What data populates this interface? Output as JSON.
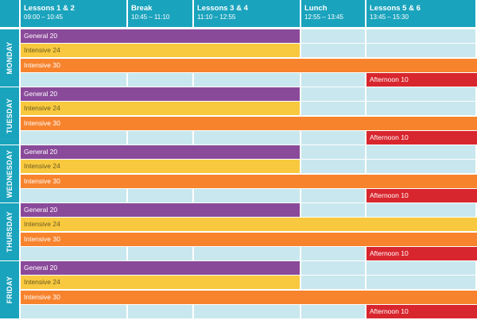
{
  "header": [
    {
      "title": "Lessons 1 & 2",
      "time": "09:00 – 10:45"
    },
    {
      "title": "Break",
      "time": "10:45 – 11:10"
    },
    {
      "title": "Lessons 3 & 4",
      "time": "11:10 – 12:55"
    },
    {
      "title": "Lunch",
      "time": "12:55 – 13:45"
    },
    {
      "title": "Lessons 5 & 6",
      "time": "13:45 – 15:30"
    }
  ],
  "days": [
    "MONDAY",
    "TUESDAY",
    "WEDNESDAY",
    "THURSDAY",
    "FRIDAY"
  ],
  "courses": {
    "general": "General 20",
    "intensive24": "Intensive 24",
    "intensive30": "Intensive 30",
    "afternoon": "Afternoon 10"
  },
  "colors": {
    "header": "#1aa3bd",
    "empty_cell": "#c9e7ee",
    "general": "#8a4a9a",
    "intensive24": "#f8c93f",
    "intensive30": "#f7832d",
    "afternoon": "#d8262e"
  }
}
